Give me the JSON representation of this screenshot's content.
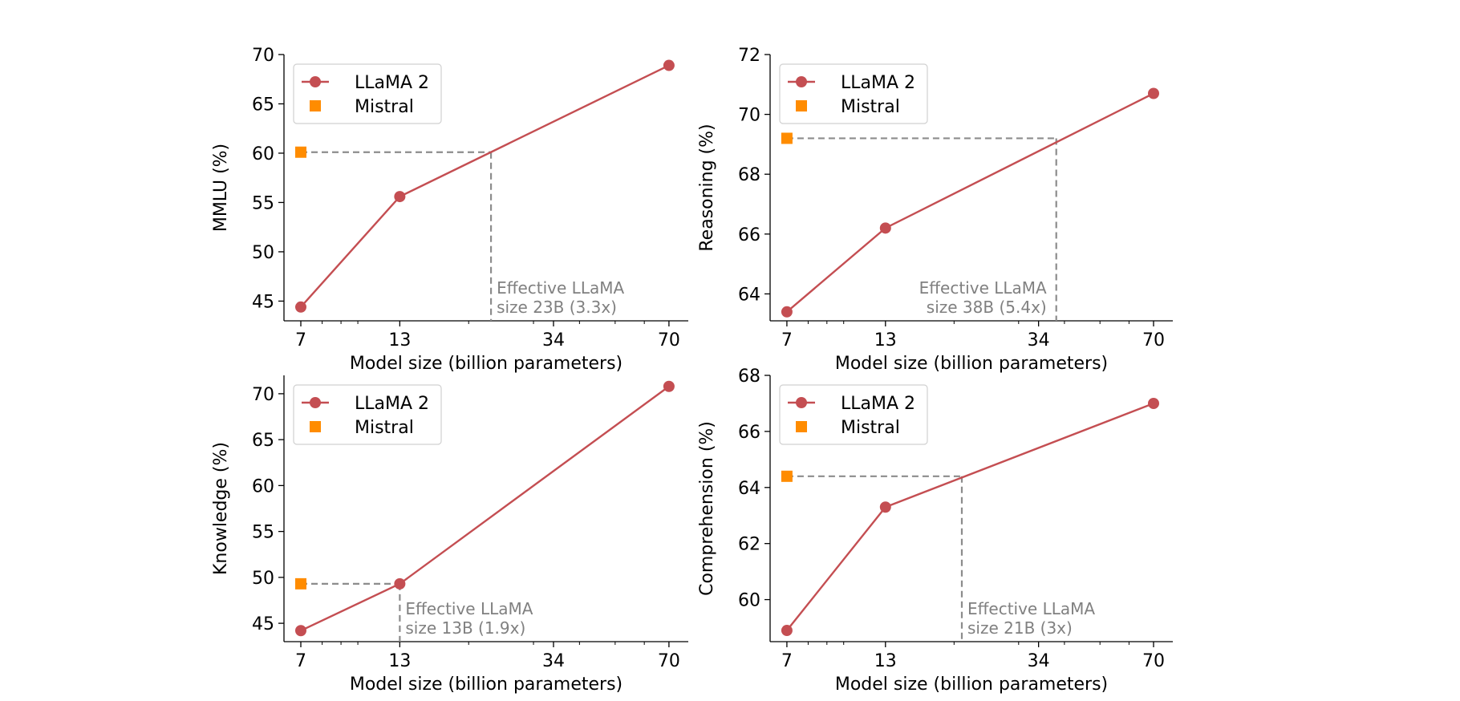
{
  "chart_data": [
    {
      "type": "line",
      "xlabel": "Model size (billion parameters)",
      "ylabel": "MMLU (%)",
      "x_scale": "log",
      "xlim": [
        6.3,
        79
      ],
      "ylim": [
        43,
        70
      ],
      "xticks": [
        7,
        13,
        34,
        70
      ],
      "yticks": [
        45,
        50,
        55,
        60,
        65,
        70
      ],
      "grid": false,
      "legend_position": "top-left",
      "legend": [
        "LLaMA 2",
        "Mistral"
      ],
      "series": [
        {
          "name": "LLaMA 2",
          "color": "#c44e52",
          "marker": "circle",
          "x": [
            7,
            13,
            70
          ],
          "y": [
            44.4,
            55.6,
            68.9
          ]
        },
        {
          "name": "Mistral",
          "color": "#ff8c00",
          "marker": "square",
          "x": [
            7
          ],
          "y": [
            60.1
          ]
        }
      ],
      "reference": {
        "x": 23,
        "y": 60.1
      },
      "annotation": [
        "Effective LLaMA",
        "size 23B (3.3x)"
      ],
      "annotation_side": "right"
    },
    {
      "type": "line",
      "xlabel": "Model size (billion parameters)",
      "ylabel": "Reasoning (%)",
      "x_scale": "log",
      "xlim": [
        6.3,
        79
      ],
      "ylim": [
        63.1,
        72
      ],
      "xticks": [
        7,
        13,
        34,
        70
      ],
      "yticks": [
        64,
        66,
        68,
        70,
        72
      ],
      "grid": false,
      "legend_position": "top-left",
      "legend": [
        "LLaMA 2",
        "Mistral"
      ],
      "series": [
        {
          "name": "LLaMA 2",
          "color": "#c44e52",
          "marker": "circle",
          "x": [
            7,
            13,
            70
          ],
          "y": [
            63.4,
            66.2,
            70.7
          ]
        },
        {
          "name": "Mistral",
          "color": "#ff8c00",
          "marker": "square",
          "x": [
            7
          ],
          "y": [
            69.2
          ]
        }
      ],
      "reference": {
        "x": 38,
        "y": 69.2
      },
      "annotation": [
        "Effective LLaMA",
        "size 38B (5.4x)"
      ],
      "annotation_side": "left"
    },
    {
      "type": "line",
      "xlabel": "Model size (billion parameters)",
      "ylabel": "Knowledge (%)",
      "x_scale": "log",
      "xlim": [
        6.3,
        79
      ],
      "ylim": [
        43,
        72
      ],
      "xticks": [
        7,
        13,
        34,
        70
      ],
      "yticks": [
        45,
        50,
        55,
        60,
        65,
        70
      ],
      "grid": false,
      "legend_position": "top-left",
      "legend": [
        "LLaMA 2",
        "Mistral"
      ],
      "series": [
        {
          "name": "LLaMA 2",
          "color": "#c44e52",
          "marker": "circle",
          "x": [
            7,
            13,
            70
          ],
          "y": [
            44.2,
            49.3,
            70.8
          ]
        },
        {
          "name": "Mistral",
          "color": "#ff8c00",
          "marker": "square",
          "x": [
            7
          ],
          "y": [
            49.3
          ]
        }
      ],
      "reference": {
        "x": 13,
        "y": 49.3
      },
      "annotation": [
        "Effective LLaMA",
        "size 13B (1.9x)"
      ],
      "annotation_side": "right"
    },
    {
      "type": "line",
      "xlabel": "Model size (billion parameters)",
      "ylabel": "Comprehension (%)",
      "x_scale": "log",
      "xlim": [
        6.3,
        79
      ],
      "ylim": [
        58.5,
        68
      ],
      "xticks": [
        7,
        13,
        34,
        70
      ],
      "yticks": [
        60,
        62,
        64,
        66,
        68
      ],
      "grid": false,
      "legend_position": "top-left",
      "legend": [
        "LLaMA 2",
        "Mistral"
      ],
      "series": [
        {
          "name": "LLaMA 2",
          "color": "#c44e52",
          "marker": "circle",
          "x": [
            7,
            13,
            70
          ],
          "y": [
            58.9,
            63.3,
            67.0
          ]
        },
        {
          "name": "Mistral",
          "color": "#ff8c00",
          "marker": "square",
          "x": [
            7
          ],
          "y": [
            64.4
          ]
        }
      ],
      "reference": {
        "x": 21,
        "y": 64.4
      },
      "annotation": [
        "Effective LLaMA",
        "size 21B (3x)"
      ],
      "annotation_side": "right"
    }
  ]
}
